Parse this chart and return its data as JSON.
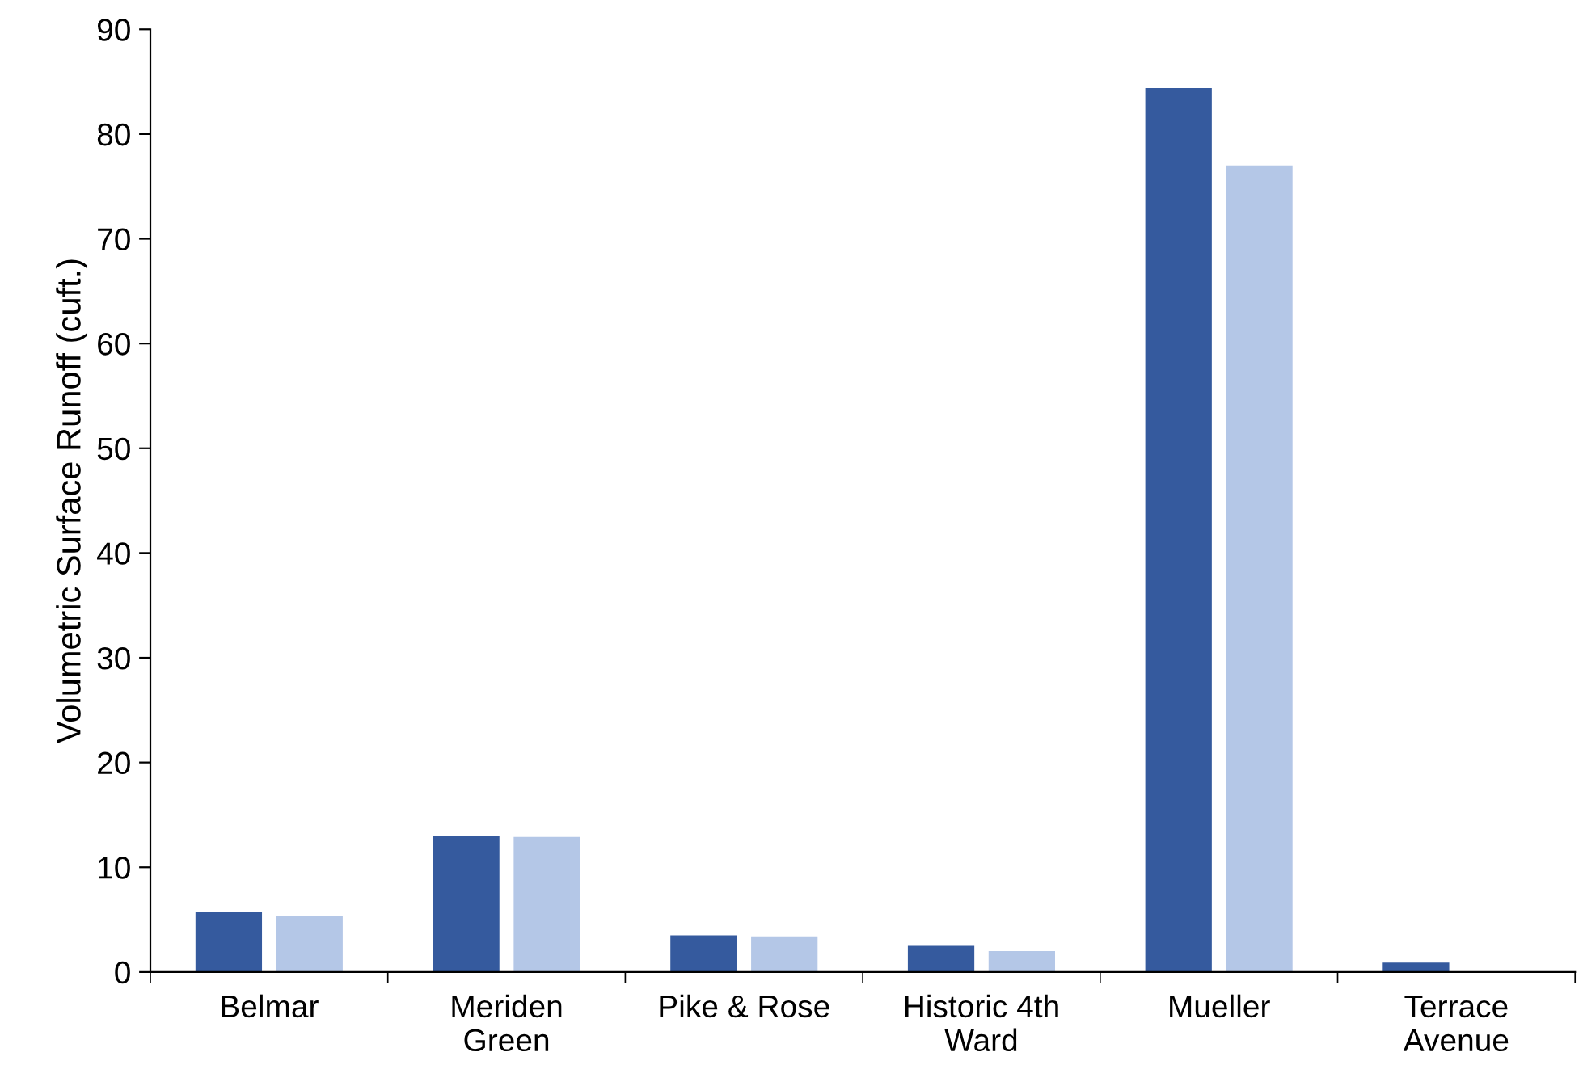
{
  "chart_data": {
    "type": "bar",
    "ylabel": "Volumetric Surface Runoff (cuft.)",
    "categories": [
      "Belmar",
      "Meriden\nGreen",
      "Pike & Rose",
      "Historic 4th\nWard",
      "Mueller",
      "Terrace\nAvenue"
    ],
    "series": [
      {
        "color": "#355a9e",
        "values": [
          5.7,
          13.0,
          3.5,
          2.5,
          84.4,
          0.9
        ]
      },
      {
        "color": "#b4c7e7",
        "values": [
          5.4,
          12.9,
          3.4,
          2.0,
          77.0,
          0
        ]
      }
    ],
    "ylim": [
      0,
      90
    ],
    "yticks": [
      0,
      10,
      20,
      30,
      40,
      50,
      60,
      70,
      80,
      90
    ],
    "grid": false,
    "legend": false
  }
}
